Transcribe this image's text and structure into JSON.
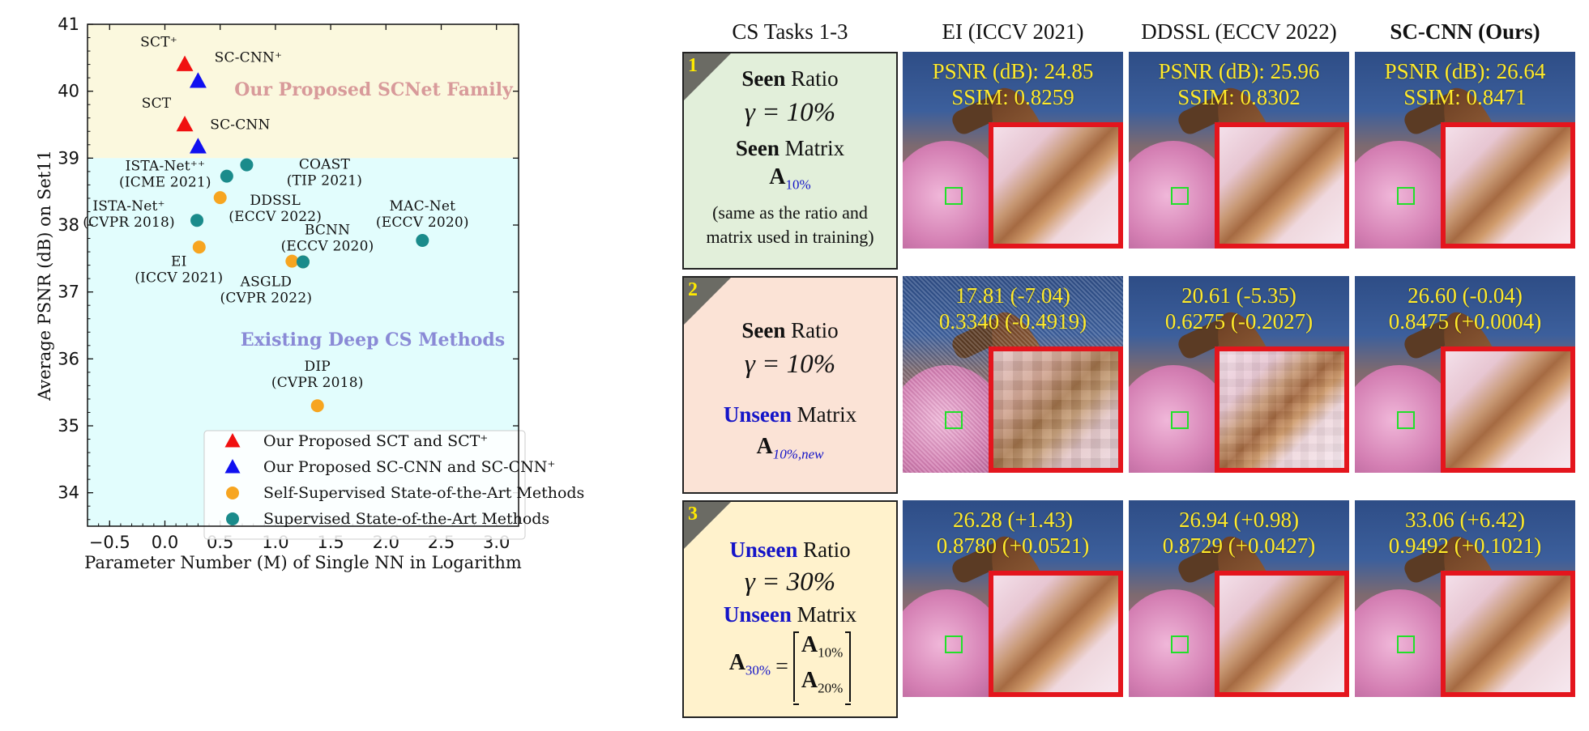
{
  "chart_data": {
    "type": "scatter",
    "xlabel": "Parameter Number (M) of Single NN in Logarithm",
    "ylabel": "Average PSNR (dB) on Set11",
    "xlim": [
      -0.7,
      3.2
    ],
    "ylim": [
      33.5,
      41.0
    ],
    "x_ticks": [
      -0.5,
      0.0,
      0.5,
      1.0,
      1.5,
      2.0,
      2.5,
      3.0
    ],
    "x_tick_labels": [
      "−0.5",
      "0.0",
      "0.5",
      "1.0",
      "1.5",
      "2.0",
      "2.5",
      "3.0"
    ],
    "y_ticks": [
      34,
      35,
      36,
      37,
      38,
      39,
      40,
      41
    ],
    "y_tick_labels": [
      "34",
      "35",
      "36",
      "37",
      "38",
      "39",
      "40",
      "41"
    ],
    "regions": [
      {
        "label": "Our Proposed SCNet Family",
        "y_range": [
          39.0,
          41.0
        ],
        "color": "#fbf8de",
        "label_color": "#d89a9a"
      },
      {
        "label": "Existing Deep CS Methods",
        "y_range": [
          33.5,
          39.0
        ],
        "color": "#e2fdfd",
        "label_color": "#8a8ad6"
      }
    ],
    "series": [
      {
        "name": "Our Proposed SCT and SCT+",
        "marker": "triangle",
        "color": "#f01010",
        "points": [
          {
            "label": "SCT+",
            "x": 0.18,
            "y": 40.4
          },
          {
            "label": "SCT",
            "x": 0.18,
            "y": 39.5
          }
        ]
      },
      {
        "name": "Our Proposed SC-CNN and SC-CNN+",
        "marker": "triangle",
        "color": "#1010f0",
        "points": [
          {
            "label": "SC-CNN+",
            "x": 0.3,
            "y": 40.15
          },
          {
            "label": "SC-CNN",
            "x": 0.3,
            "y": 39.17
          }
        ]
      },
      {
        "name": "Self-Supervised State-of-the-Art Methods",
        "marker": "circle",
        "color": "#f7a520",
        "points": [
          {
            "label": "DDSSL (ECCV 2022)",
            "x": 0.5,
            "y": 38.41
          },
          {
            "label": "EI (ICCV 2021)",
            "x": 0.31,
            "y": 37.67
          },
          {
            "label": "ASGLD (CVPR 2022)",
            "x": 1.15,
            "y": 37.46
          },
          {
            "label": "ASGLD (CVPR 2022)",
            "x": 1.25,
            "y": 37.45
          },
          {
            "label": "DIP (CVPR 2018)",
            "x": 1.38,
            "y": 35.3
          }
        ]
      },
      {
        "name": "Supervised State-of-the-Art Methods",
        "marker": "circle",
        "color": "#1a8b8b",
        "points": [
          {
            "label": "COAST (TIP 2021)",
            "x": 0.74,
            "y": 38.9
          },
          {
            "label": "ISTA-Net++ (ICME 2021)",
            "x": 0.56,
            "y": 38.73
          },
          {
            "label": "ISTA-Net+ (CVPR 2018)",
            "x": 0.29,
            "y": 38.07
          },
          {
            "label": "BCNN (ECCV 2020)",
            "x": 1.25,
            "y": 37.45
          },
          {
            "label": "MAC-Net (ECCV 2020)",
            "x": 2.33,
            "y": 37.77
          }
        ]
      }
    ],
    "legend": {
      "placement": "bottom-right"
    }
  },
  "panel": {
    "col_headers": [
      "CS Tasks 1-3",
      "EI (ICCV 2021)",
      "DDSSL (ECCV 2022)",
      "SC-CNN (Ours)"
    ],
    "tasks": [
      {
        "number": "1",
        "ratio_kw": "Seen",
        "ratio_word": "Ratio",
        "gamma": "γ = 10%",
        "matrix_kw": "Seen",
        "matrix_word": "Matrix",
        "matrix_sym": "A",
        "matrix_sub": "10%",
        "note": "(same as the ratio and matrix used in training)"
      },
      {
        "number": "2",
        "ratio_kw": "Seen",
        "ratio_word": "Ratio",
        "gamma": "γ = 10%",
        "matrix_kw": "Unseen",
        "matrix_word": "Matrix",
        "matrix_sym": "A",
        "matrix_sub": "10%,new"
      },
      {
        "number": "3",
        "ratio_kw": "Unseen",
        "ratio_word": "Ratio",
        "gamma": "γ = 30%",
        "matrix_kw": "Unseen",
        "matrix_word": "Matrix",
        "matrix_sym": "A",
        "matrix_sub": "30%",
        "block_top": "A",
        "block_top_sub": "10%",
        "block_bottom": "A",
        "block_bottom_sub": "20%"
      }
    ],
    "metrics": [
      [
        {
          "psnr": "PSNR (dB): 24.85",
          "ssim": "SSIM: 0.8259"
        },
        {
          "psnr": "PSNR (dB): 25.96",
          "ssim": "SSIM: 0.8302"
        },
        {
          "psnr": "PSNR (dB): 26.64",
          "ssim": "SSIM: 0.8471"
        }
      ],
      [
        {
          "psnr": "17.81 (-7.04)",
          "ssim": "0.3340 (-0.4919)"
        },
        {
          "psnr": "20.61 (-5.35)",
          "ssim": "0.6275 (-0.2027)"
        },
        {
          "psnr": "26.60 (-0.04)",
          "ssim": "0.8475 (+0.0004)"
        }
      ],
      [
        {
          "psnr": "26.28 (+1.43)",
          "ssim": "0.8780 (+0.0521)"
        },
        {
          "psnr": "26.94 (+0.98)",
          "ssim": "0.8729 (+0.0427)"
        },
        {
          "psnr": "33.06 (+6.42)",
          "ssim": "0.9492 (+0.1021)"
        }
      ]
    ]
  }
}
